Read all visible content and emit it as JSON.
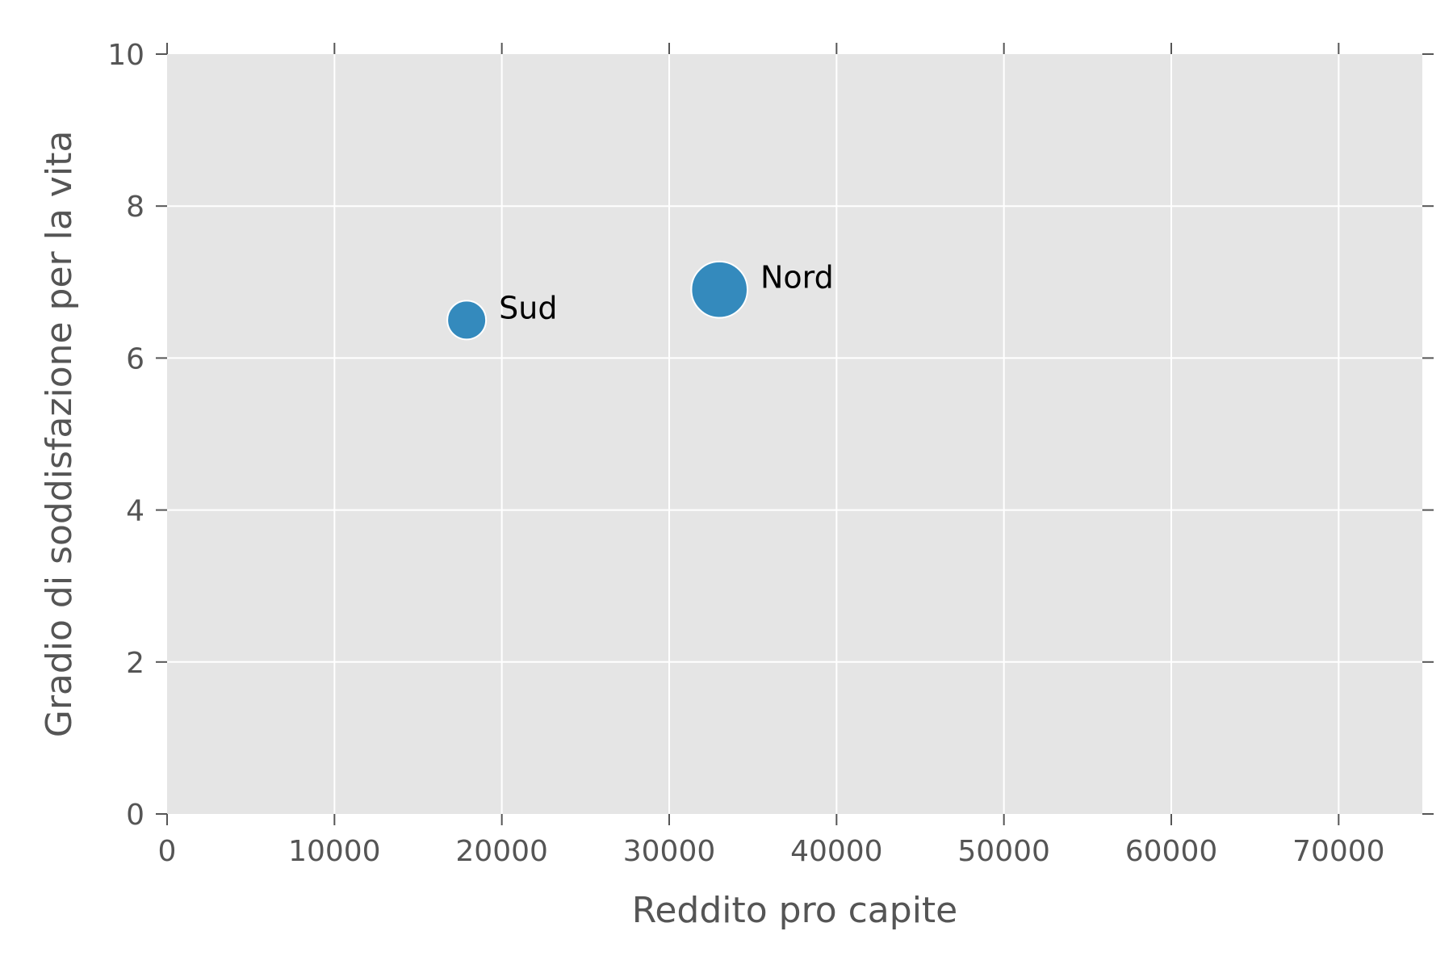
{
  "chart_data": {
    "type": "scatter",
    "title": "",
    "xlabel": "Reddito pro capite",
    "ylabel": "Gradio di soddisfazione per la vita",
    "xlim": [
      0,
      75000
    ],
    "ylim": [
      0,
      10
    ],
    "x_ticks": [
      0,
      10000,
      20000,
      30000,
      40000,
      50000,
      60000,
      70000
    ],
    "x_tick_labels": [
      "0",
      "10000",
      "20000",
      "30000",
      "40000",
      "50000",
      "60000",
      "70000"
    ],
    "y_ticks": [
      0,
      2,
      4,
      6,
      8,
      10
    ],
    "y_tick_labels": [
      "0",
      "2",
      "4",
      "6",
      "8",
      "10"
    ],
    "grid": true,
    "points": [
      {
        "label": "Sud",
        "x": 17900,
        "y": 6.5,
        "size": 1.0
      },
      {
        "label": "Nord",
        "x": 33000,
        "y": 6.9,
        "size": 1.45
      }
    ],
    "colors": {
      "marker": "#348abd",
      "marker_edge": "#ffffff",
      "plot_background": "#e5e5e5",
      "grid": "#ffffff",
      "tick_text": "#555555",
      "label_text": "#000000"
    }
  }
}
